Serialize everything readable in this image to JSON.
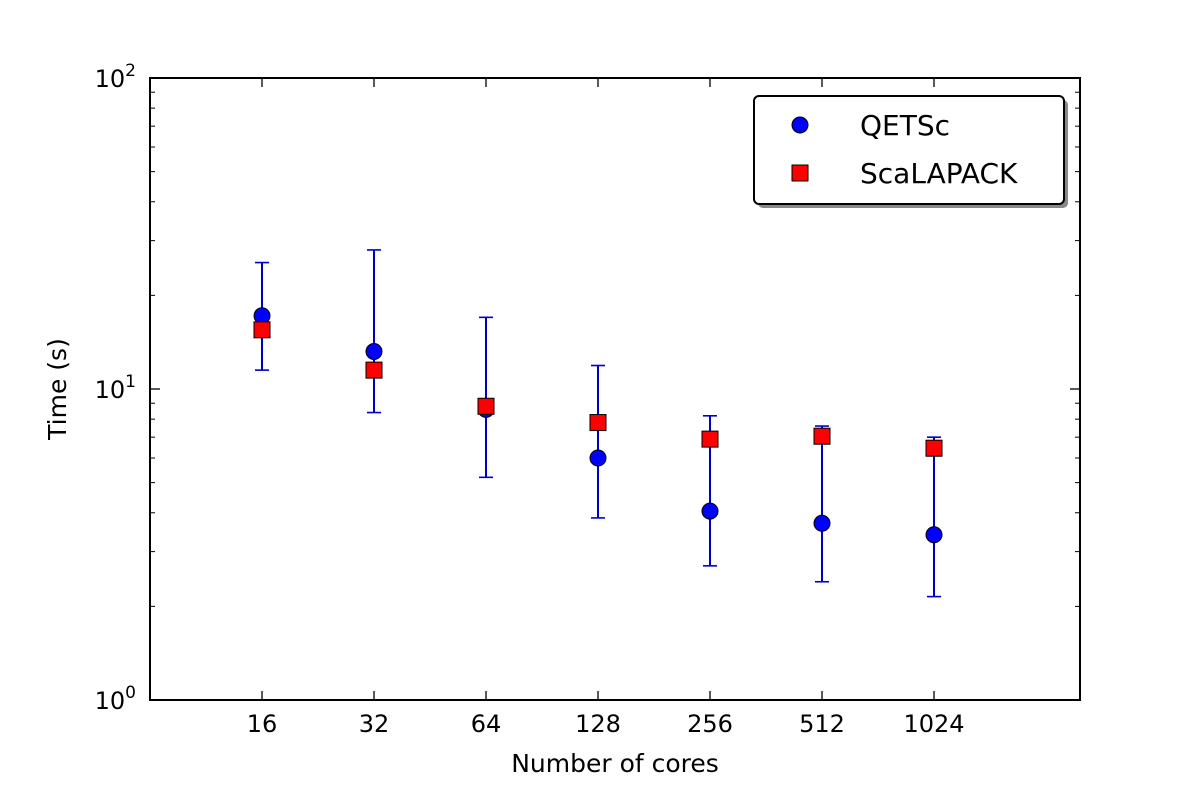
{
  "chart_data": {
    "type": "scatter",
    "xlabel": "Number of cores",
    "ylabel": "Time (s)",
    "categories": [
      "16",
      "32",
      "64",
      "128",
      "256",
      "512",
      "1024"
    ],
    "y_scale": "log",
    "ylim": [
      1,
      100
    ],
    "y_ticks": [
      {
        "value": 1,
        "base": "10",
        "exp": "0"
      },
      {
        "value": 10,
        "base": "10",
        "exp": "1"
      },
      {
        "value": 100,
        "base": "10",
        "exp": "2"
      }
    ],
    "grid": false,
    "legend_position": "top-right",
    "series": [
      {
        "name": "QETSc",
        "marker": "circle",
        "color": "#0000ff",
        "values": [
          17.2,
          13.2,
          8.6,
          6.0,
          4.05,
          3.7,
          3.4
        ],
        "error_low": [
          11.5,
          8.4,
          5.2,
          3.85,
          2.7,
          2.4,
          2.15
        ],
        "error_high": [
          25.5,
          28.0,
          17.0,
          11.9,
          8.2,
          7.6,
          7.0
        ],
        "error_color": "#0000cc"
      },
      {
        "name": "ScaLAPACK",
        "marker": "square",
        "color": "#ff0000",
        "values": [
          15.5,
          11.5,
          8.8,
          7.8,
          6.9,
          7.05,
          6.45
        ]
      }
    ]
  }
}
